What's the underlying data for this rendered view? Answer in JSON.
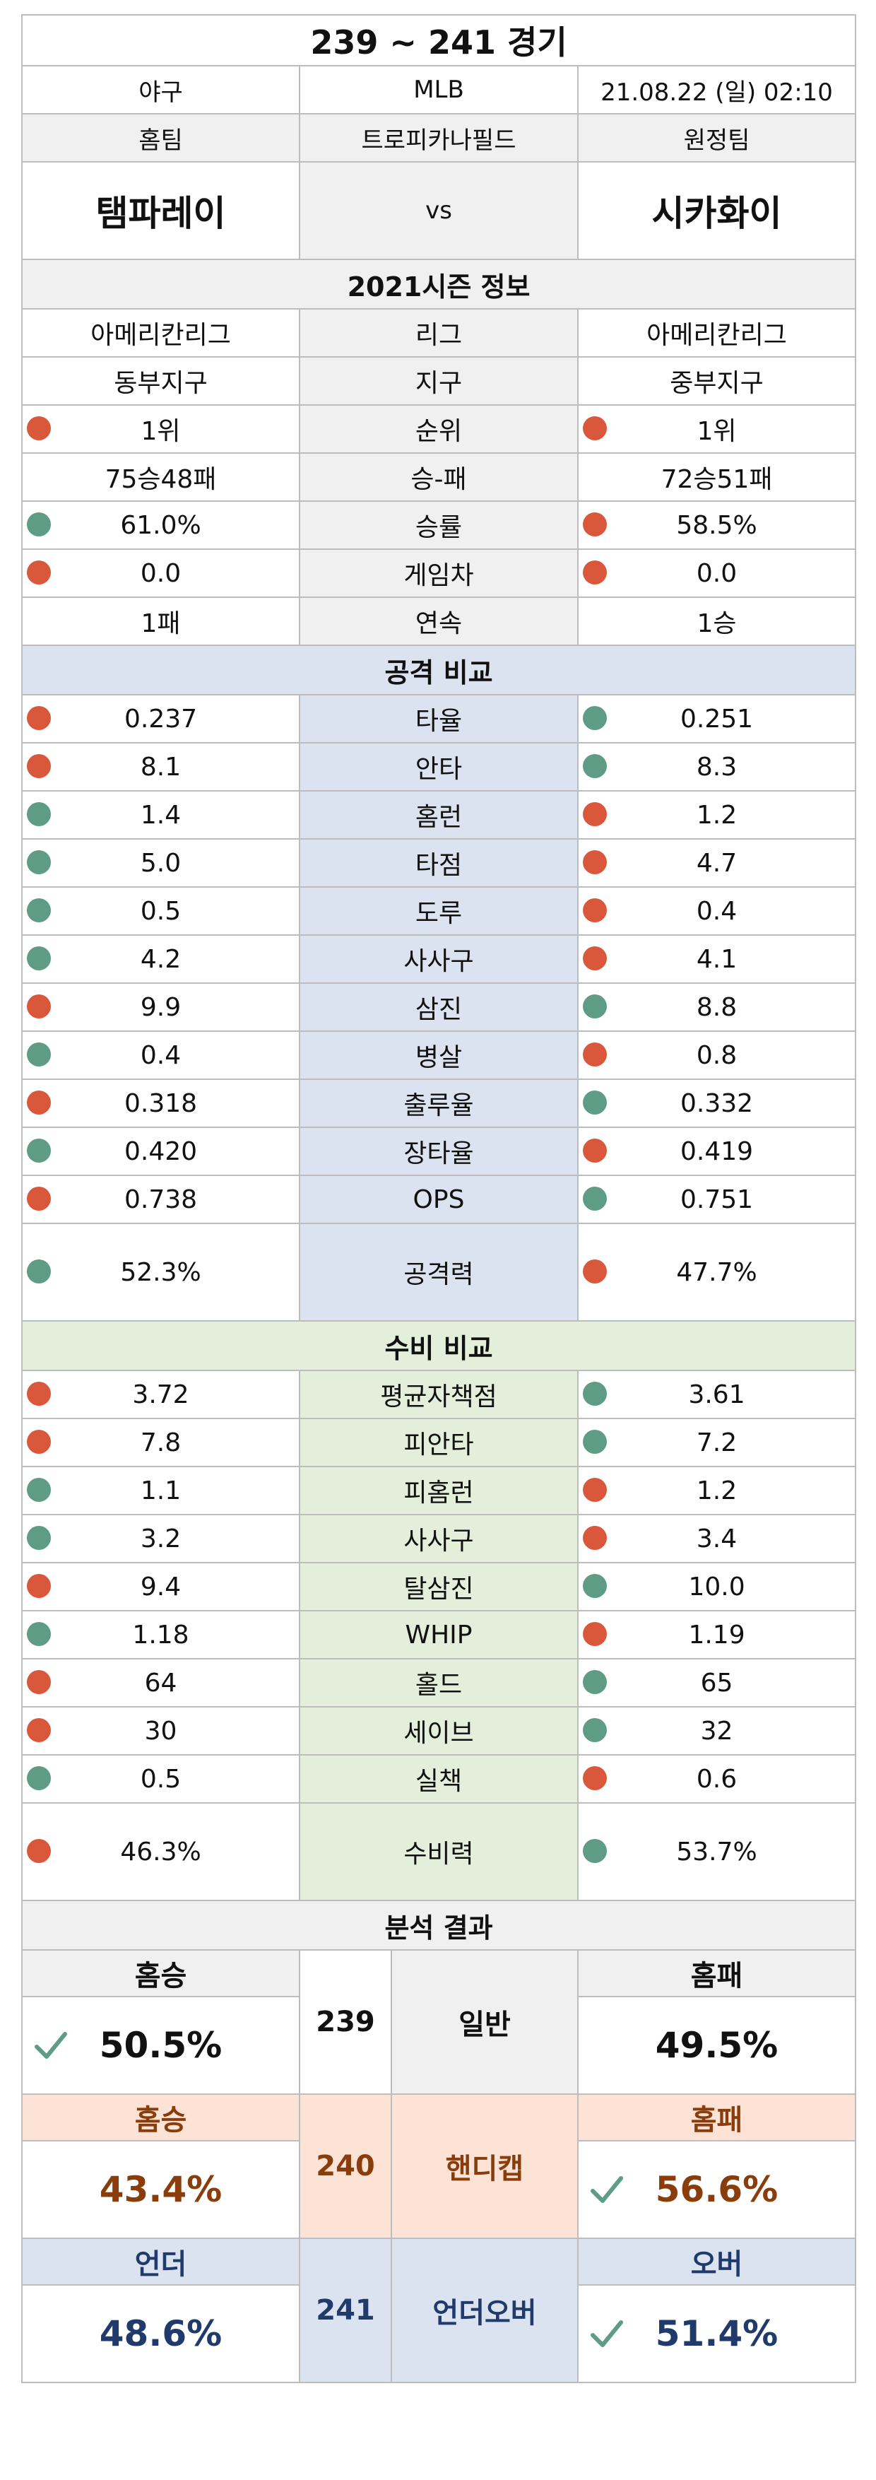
{
  "title": "239 ~ 241 경기",
  "info": {
    "sport": "야구",
    "league": "MLB",
    "datetime": "21.08.22 (일) 02:10"
  },
  "labels": {
    "home": "홈팀",
    "stadium": "트로피카나필드",
    "away": "원정팀",
    "vs": "vs"
  },
  "teams": {
    "home": "탬파레이",
    "away": "시카화이"
  },
  "season": {
    "title": "2021시즌 정보",
    "rows": [
      {
        "label": "리그",
        "home": "아메리칸리그",
        "away": "아메리칸리그"
      },
      {
        "label": "지구",
        "home": "동부지구",
        "away": "중부지구"
      },
      {
        "label": "순위",
        "home": "1위",
        "away": "1위",
        "hd": "red",
        "ad": "red"
      },
      {
        "label": "승-패",
        "home": "75승48패",
        "away": "72승51패"
      },
      {
        "label": "승률",
        "home": "61.0%",
        "away": "58.5%",
        "hd": "green",
        "ad": "red"
      },
      {
        "label": "게임차",
        "home": "0.0",
        "away": "0.0",
        "hd": "red",
        "ad": "red"
      },
      {
        "label": "연속",
        "home": "1패",
        "away": "1승"
      }
    ]
  },
  "attack": {
    "title": "공격 비교",
    "rows": [
      {
        "label": "타율",
        "home": "0.237",
        "away": "0.251",
        "hd": "red",
        "ad": "green"
      },
      {
        "label": "안타",
        "home": "8.1",
        "away": "8.3",
        "hd": "red",
        "ad": "green"
      },
      {
        "label": "홈런",
        "home": "1.4",
        "away": "1.2",
        "hd": "green",
        "ad": "red"
      },
      {
        "label": "타점",
        "home": "5.0",
        "away": "4.7",
        "hd": "green",
        "ad": "red"
      },
      {
        "label": "도루",
        "home": "0.5",
        "away": "0.4",
        "hd": "green",
        "ad": "red"
      },
      {
        "label": "사사구",
        "home": "4.2",
        "away": "4.1",
        "hd": "green",
        "ad": "red"
      },
      {
        "label": "삼진",
        "home": "9.9",
        "away": "8.8",
        "hd": "red",
        "ad": "green"
      },
      {
        "label": "병살",
        "home": "0.4",
        "away": "0.8",
        "hd": "green",
        "ad": "red"
      },
      {
        "label": "출루율",
        "home": "0.318",
        "away": "0.332",
        "hd": "red",
        "ad": "green"
      },
      {
        "label": "장타율",
        "home": "0.420",
        "away": "0.419",
        "hd": "green",
        "ad": "red"
      },
      {
        "label": "OPS",
        "home": "0.738",
        "away": "0.751",
        "hd": "red",
        "ad": "green"
      },
      {
        "label": "공격력",
        "home": "52.3%",
        "away": "47.7%",
        "hd": "green",
        "ad": "red",
        "tall": true
      }
    ]
  },
  "defense": {
    "title": "수비 비교",
    "rows": [
      {
        "label": "평균자책점",
        "home": "3.72",
        "away": "3.61",
        "hd": "red",
        "ad": "green"
      },
      {
        "label": "피안타",
        "home": "7.8",
        "away": "7.2",
        "hd": "red",
        "ad": "green"
      },
      {
        "label": "피홈런",
        "home": "1.1",
        "away": "1.2",
        "hd": "green",
        "ad": "red"
      },
      {
        "label": "사사구",
        "home": "3.2",
        "away": "3.4",
        "hd": "green",
        "ad": "red"
      },
      {
        "label": "탈삼진",
        "home": "9.4",
        "away": "10.0",
        "hd": "red",
        "ad": "green"
      },
      {
        "label": "WHIP",
        "home": "1.18",
        "away": "1.19",
        "hd": "green",
        "ad": "red"
      },
      {
        "label": "홀드",
        "home": "64",
        "away": "65",
        "hd": "red",
        "ad": "green"
      },
      {
        "label": "세이브",
        "home": "30",
        "away": "32",
        "hd": "red",
        "ad": "green"
      },
      {
        "label": "실책",
        "home": "0.5",
        "away": "0.6",
        "hd": "green",
        "ad": "red"
      },
      {
        "label": "수비력",
        "home": "46.3%",
        "away": "53.7%",
        "hd": "red",
        "ad": "green",
        "tall": true
      }
    ]
  },
  "analysis": {
    "title": "분석 결과",
    "general": {
      "no": "239",
      "label": "일반",
      "home_head": "홈승",
      "away_head": "홈패",
      "home": "50.5%",
      "away": "49.5%",
      "pick": "home"
    },
    "handicap": {
      "no": "240",
      "label": "핸디캡",
      "home_head": "홈승",
      "away_head": "홈패",
      "home": "43.4%",
      "away": "56.6%",
      "pick": "away"
    },
    "underover": {
      "no": "241",
      "label": "언더오버",
      "home_head": "언더",
      "away_head": "오버",
      "home": "48.6%",
      "away": "51.4%",
      "pick": "away"
    }
  },
  "colors": {
    "dot_red": "#d9573a",
    "dot_green": "#5e9c85",
    "check": "#5e9c85",
    "attack_bg": "#dbe3f0",
    "defense_bg": "#e3efda",
    "handicap_bg": "#fde3d6",
    "handicap_text": "#8a3d0b",
    "underover_text": "#1f3a6b"
  }
}
